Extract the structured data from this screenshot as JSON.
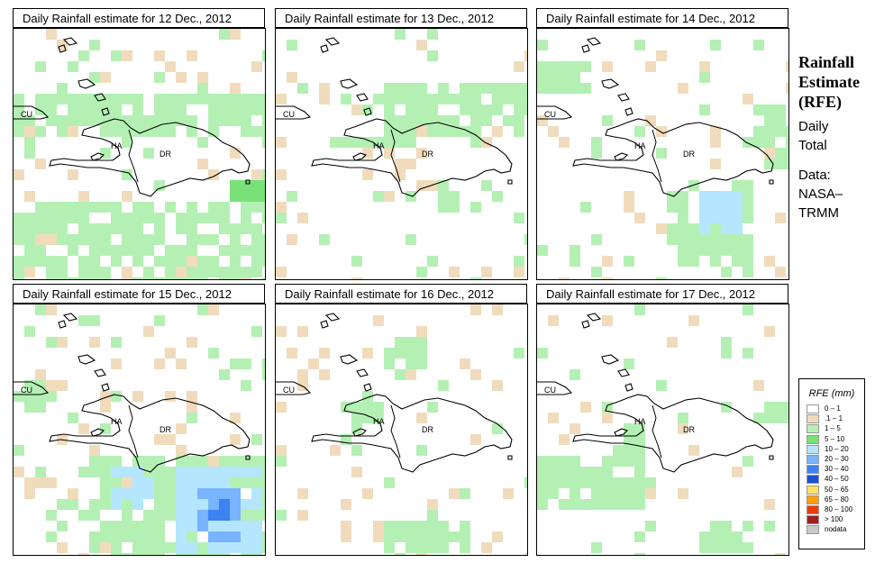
{
  "panels": [
    {
      "title": "Daily Rainfall estimate for  12 Dec., 2012"
    },
    {
      "title": "Daily Rainfall estimate for  13 Dec., 2012"
    },
    {
      "title": "Daily Rainfall estimate for  14 Dec., 2012"
    },
    {
      "title": "Daily Rainfall estimate for  15 Dec., 2012"
    },
    {
      "title": "Daily Rainfall estimate for  16 Dec., 2012"
    },
    {
      "title": "Daily Rainfall estimate for  17 Dec., 2012"
    }
  ],
  "map_labels": {
    "cu": "CU",
    "ha": "HA",
    "dr": "DR"
  },
  "sidebar": {
    "title_line1": "Rainfall",
    "title_line2": "Estimate",
    "title_line3": "(RFE)",
    "line1": "Daily",
    "line2": "Total",
    "line3": "Data:",
    "line4": "NASA–",
    "line5": "TRMM"
  },
  "legend": {
    "title": "RFE (mm)",
    "items": [
      {
        "label": "0 – 1",
        "color": "#ffffff"
      },
      {
        "label": ".1 – 1",
        "color": "#f0dcbc"
      },
      {
        "label": "1 – 5",
        "color": "#b4f0b4"
      },
      {
        "label": "5 – 10",
        "color": "#78e178"
      },
      {
        "label": "10 – 20",
        "color": "#b4e6ff"
      },
      {
        "label": "20 – 30",
        "color": "#78b4ff"
      },
      {
        "label": "30 – 40",
        "color": "#3c82f0"
      },
      {
        "label": "40 – 50",
        "color": "#1e50d2"
      },
      {
        "label": "50 – 65",
        "color": "#ffe164"
      },
      {
        "label": "65 – 80",
        "color": "#ffa000"
      },
      {
        "label": "80 – 100",
        "color": "#f03c00"
      },
      {
        "label": "> 100",
        "color": "#a01e1e"
      },
      {
        "label": "nodata",
        "color": "#c8c8c8"
      }
    ]
  }
}
